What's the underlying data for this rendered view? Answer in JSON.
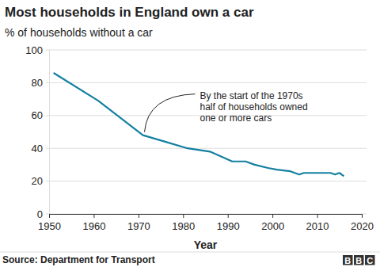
{
  "chart_data": {
    "type": "line",
    "title": "Most households in England own a car",
    "subtitle": "% of households without a car",
    "x_label": "Year",
    "source": "Source: Department for Transport",
    "logo": "BBC",
    "x": [
      1951,
      1961,
      1971,
      1976,
      1981,
      1986,
      1991,
      1994,
      1996,
      1999,
      2001,
      2004,
      2005,
      2006,
      2007,
      2010,
      2013,
      2014,
      2015,
      2016
    ],
    "values": [
      86,
      69,
      48,
      44,
      40,
      38,
      32,
      32,
      30,
      28,
      27,
      26,
      25,
      24,
      25,
      25,
      25,
      24,
      25,
      23
    ],
    "color": "#1380a1",
    "xlim": [
      1950,
      2020
    ],
    "xticks": [
      1950,
      1960,
      1970,
      1980,
      1990,
      2000,
      2010,
      2020
    ],
    "ylim": [
      0,
      100
    ],
    "yticks": [
      0,
      20,
      40,
      60,
      80,
      100
    ],
    "grid": true,
    "annotations": [
      {
        "text": [
          "By the start of the 1970s",
          "half of households owned",
          "one or more cars"
        ],
        "x": 1971,
        "y": 48
      }
    ]
  }
}
